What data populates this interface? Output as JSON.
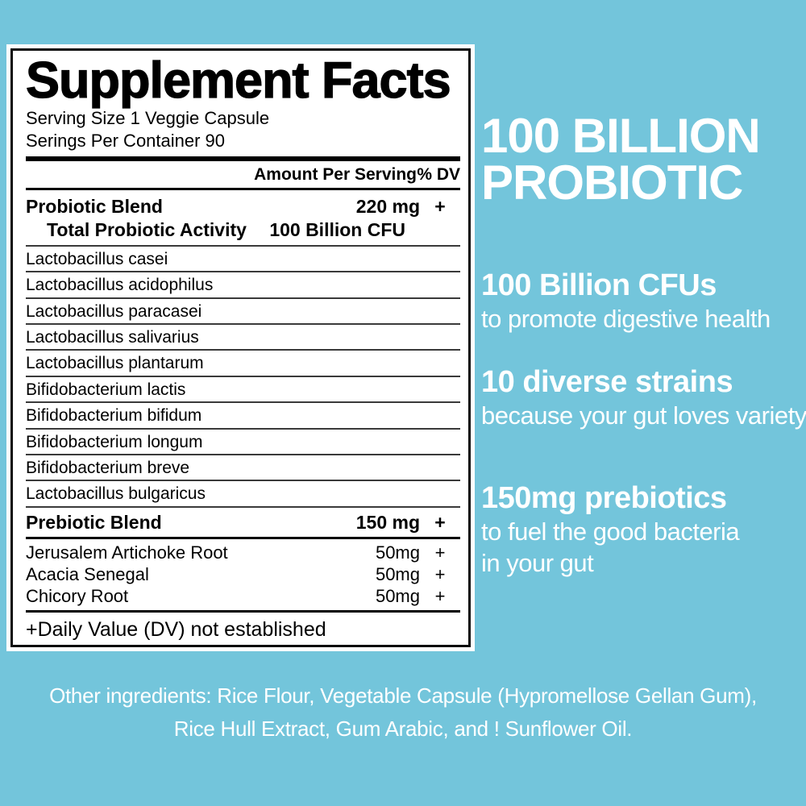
{
  "colors": {
    "background": "#73C5DB",
    "panel_background": "#FFFFFF",
    "label_text": "#000000",
    "marketing_text": "#FFFFFF"
  },
  "supplement_facts": {
    "title": "Supplement Facts",
    "serving_size": "Serving Size 1 Veggie Capsule",
    "servings_per_container": "Serings Per Container 90",
    "column_header": {
      "amount": "Amount Per Serving",
      "dv": "% DV"
    },
    "probiotic_blend": {
      "name": "Probiotic Blend",
      "amount": "220 mg",
      "dv": "+",
      "activity_label": "Total Probiotic Activity",
      "activity_amount": "100 Billion CFU"
    },
    "strains": [
      "Lactobacillus casei",
      "Lactobacillus acidophilus",
      "Lactobacillus paracasei",
      "Lactobacillus salivarius",
      "Lactobacillus plantarum",
      "Bifidobacterium lactis",
      "Bifidobacterium bifidum",
      "Bifidobacterium longum",
      "Bifidobacterium breve",
      "Lactobacillus bulgaricus"
    ],
    "prebiotic_blend": {
      "name": "Prebiotic Blend",
      "amount": "150 mg",
      "dv": "+"
    },
    "prebiotic_ingredients": [
      {
        "name": "Jerusalem Artichoke Root",
        "amount": "50mg",
        "dv": "+"
      },
      {
        "name": "Acacia Senegal",
        "amount": "50mg",
        "dv": "+"
      },
      {
        "name": "Chicory Root",
        "amount": "50mg",
        "dv": "+"
      }
    ],
    "footnote": "+Daily Value (DV) not established"
  },
  "marketing": {
    "headline_line1": "100 BILLION",
    "headline_line2": "PROBIOTIC",
    "feature_cfus": {
      "title": "100 Billion CFUs",
      "subtitle": "to promote digestive health"
    },
    "feature_strains": {
      "title": "10 diverse strains",
      "subtitle": "because your gut loves variety"
    },
    "feature_prebiotics": {
      "title": "150mg prebiotics",
      "subtitle_line1": "to fuel the good bacteria",
      "subtitle_line2": "in your gut"
    },
    "other_ingredients_line1": "Other ingredients: Rice Flour, Vegetable Capsule (Hypromellose Gellan Gum),",
    "other_ingredients_line2": "Rice Hull Extract, Gum Arabic, and ! Sunflower Oil."
  }
}
